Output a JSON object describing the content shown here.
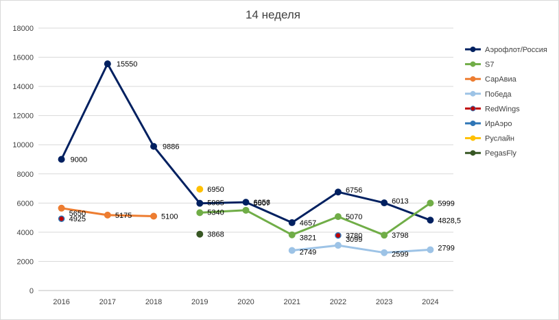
{
  "chart_data": {
    "type": "line",
    "title": "14 неделя",
    "xlabel": "",
    "ylabel": "",
    "categories": [
      "2016",
      "2017",
      "2018",
      "2019",
      "2020",
      "2021",
      "2022",
      "2023",
      "2024"
    ],
    "ylim": [
      0,
      18000
    ],
    "yticks": [
      0,
      2000,
      4000,
      6000,
      8000,
      10000,
      12000,
      14000,
      16000,
      18000
    ],
    "ytick_labels": [
      "0",
      "2000",
      "4000",
      "6000",
      "8000",
      "10000",
      "12000",
      "14000",
      "16000",
      "18000"
    ],
    "grid": true,
    "legend_position": "right",
    "series": [
      {
        "name": "Аэрофлот/Россия",
        "color": "#002060",
        "values": [
          9000,
          15550,
          9886,
          5985,
          6056,
          4657,
          6756,
          6013,
          4828.5
        ],
        "labels": [
          "9000",
          "15550",
          "9886",
          "5985",
          "6056",
          "4657",
          "6756",
          "6013",
          "4828,5"
        ]
      },
      {
        "name": "S7",
        "color": "#70ad47",
        "values": [
          null,
          null,
          null,
          5340,
          5507,
          3821,
          5070,
          3798,
          5999
        ],
        "labels": [
          "",
          "",
          "",
          "5340",
          "5507",
          "3821",
          "5070",
          "3798",
          "5999"
        ]
      },
      {
        "name": "СарАвиа",
        "color": "#ed7d31",
        "values": [
          5650,
          5175,
          5100,
          null,
          null,
          null,
          null,
          null,
          null
        ],
        "labels": [
          "5650",
          "5175",
          "5100",
          "",
          "",
          "",
          "",
          "",
          ""
        ]
      },
      {
        "name": "Победа",
        "color": "#9dc3e6",
        "values": [
          null,
          null,
          null,
          null,
          null,
          2749,
          3099,
          2599,
          2799
        ],
        "labels": [
          "",
          "",
          "",
          "",
          "",
          "2749",
          "3099",
          "2599",
          "2799"
        ]
      },
      {
        "name": "RedWings",
        "color": "#c00000",
        "values": [
          4925,
          null,
          null,
          null,
          null,
          null,
          3780,
          null,
          null
        ],
        "labels": [
          "4925",
          "",
          "",
          "",
          "",
          "",
          "3780",
          "",
          ""
        ]
      },
      {
        "name": "ИрАэро",
        "color": "#2e75b6",
        "values": [
          null,
          null,
          null,
          null,
          null,
          null,
          null,
          null,
          null
        ],
        "labels": [
          "",
          "",
          "",
          "",
          "",
          "",
          "",
          "",
          ""
        ]
      },
      {
        "name": "Руслайн",
        "color": "#ffc000",
        "values": [
          null,
          null,
          null,
          6950,
          null,
          null,
          null,
          null,
          null
        ],
        "labels": [
          "",
          "",
          "",
          "6950",
          "",
          "",
          "",
          "",
          ""
        ]
      },
      {
        "name": "PegasFly",
        "color": "#375623",
        "values": [
          null,
          null,
          null,
          3868,
          null,
          null,
          null,
          null,
          null
        ],
        "labels": [
          "",
          "",
          "",
          "3868",
          "",
          "",
          "",
          "",
          ""
        ]
      }
    ]
  }
}
